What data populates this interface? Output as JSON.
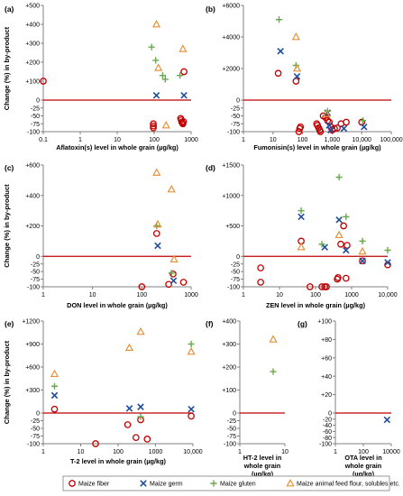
{
  "figure": {
    "ylabel": "Change (%) in by-product",
    "legend": [
      {
        "name": "Maize fiber",
        "marker": "circle",
        "color": "#c00000"
      },
      {
        "name": "Maize germ",
        "marker": "x",
        "color": "#1f4e9a"
      },
      {
        "name": "Maize gluten",
        "marker": "plus",
        "color": "#6aa84f"
      },
      {
        "name": "Maize animal feed flour, solubles etc.",
        "marker": "triangle",
        "color": "#e69138"
      }
    ],
    "colors": {
      "fiber": "#c00000",
      "germ": "#1f4e9a",
      "gluten": "#6aa84f",
      "feed": "#e69138",
      "zero_line": "#c00000",
      "axis": "#808080"
    }
  },
  "chart_data": [
    {
      "id": "a",
      "type": "scatter",
      "panel_label": "(a)",
      "xlabel": "Aflatoxin(s) level in whole grain (µg/kg)",
      "xscale": "log",
      "xlim": [
        0.1,
        1000
      ],
      "ylim": [
        -100,
        500
      ],
      "xticks": [
        0.1,
        1,
        10,
        100,
        1000
      ],
      "xtick_labels": [
        "0.1",
        "1",
        "10",
        "100",
        "1000"
      ],
      "yticks": [
        -100,
        -75,
        -50,
        -25,
        0,
        100,
        200,
        300,
        400,
        500
      ],
      "ytick_labels": [
        "-100",
        "-75",
        "-50",
        "-25",
        "0",
        "+100",
        "+200",
        "+300",
        "+400",
        "+500"
      ],
      "series": [
        {
          "name": "Maize fiber",
          "points": [
            [
              0.1,
              100
            ],
            [
              95,
              -75
            ],
            [
              95,
              -82
            ],
            [
              95,
              -88
            ],
            [
              520,
              -58
            ],
            [
              540,
              -63
            ],
            [
              560,
              -70
            ],
            [
              580,
              -73
            ],
            [
              600,
              -75
            ],
            [
              620,
              -68
            ],
            [
              640,
              150
            ]
          ]
        },
        {
          "name": "Maize germ",
          "points": [
            [
              115,
              25
            ],
            [
              640,
              25
            ]
          ]
        },
        {
          "name": "Maize gluten",
          "points": [
            [
              85,
              280
            ],
            [
              110,
              210
            ],
            [
              170,
              130
            ],
            [
              200,
              110
            ],
            [
              500,
              130
            ]
          ]
        },
        {
          "name": "Maize animal feed flour, solubles etc.",
          "points": [
            [
              115,
              400
            ],
            [
              130,
              170
            ],
            [
              210,
              -80
            ],
            [
              600,
              270
            ]
          ]
        }
      ]
    },
    {
      "id": "b",
      "type": "scatter",
      "panel_label": "(b)",
      "xlabel": "Fumonisin(s) level in whole grain (µg/kg)",
      "xscale": "log",
      "xlim": [
        1,
        100000
      ],
      "ylim": [
        -100,
        6000
      ],
      "xticks": [
        1,
        10,
        100,
        1000,
        10000,
        100000
      ],
      "xtick_labels": [
        "1",
        "10",
        "100",
        "1,000",
        "10,000",
        "100,000"
      ],
      "yticks": [
        -100,
        -75,
        -50,
        -25,
        0,
        2000,
        4000,
        6000
      ],
      "ytick_labels": [
        "-100",
        "-75",
        "-50",
        "-25",
        "0",
        "+2000",
        "+4000",
        "+6000"
      ],
      "series": [
        {
          "name": "Maize fiber",
          "points": [
            [
              15,
              1700
            ],
            [
              60,
              1200
            ],
            [
              75,
              -100
            ],
            [
              80,
              -90
            ],
            [
              85,
              -85
            ],
            [
              300,
              -75
            ],
            [
              320,
              -80
            ],
            [
              350,
              -88
            ],
            [
              380,
              -95
            ],
            [
              400,
              -100
            ],
            [
              500,
              -50
            ],
            [
              600,
              -55
            ],
            [
              700,
              -65
            ],
            [
              800,
              -70
            ],
            [
              900,
              -85
            ],
            [
              1000,
              -95
            ],
            [
              1200,
              -90
            ],
            [
              1500,
              -88
            ],
            [
              2000,
              -75
            ],
            [
              3000,
              -70
            ],
            [
              10000,
              -70
            ]
          ]
        },
        {
          "name": "Maize germ",
          "points": [
            [
              18,
              3100
            ],
            [
              65,
              1500
            ],
            [
              700,
              -40
            ],
            [
              800,
              -80
            ],
            [
              900,
              -95
            ],
            [
              2500,
              -90
            ],
            [
              12000,
              -85
            ]
          ]
        },
        {
          "name": "Maize gluten",
          "points": [
            [
              16,
              5100
            ],
            [
              60,
              2200
            ],
            [
              700,
              -35
            ],
            [
              11000,
              -65
            ]
          ]
        },
        {
          "name": "Maize animal feed flour, solubles etc.",
          "points": [
            [
              60,
              4000
            ],
            [
              65,
              2000
            ],
            [
              650,
              -45
            ]
          ]
        }
      ]
    },
    {
      "id": "c",
      "type": "scatter",
      "panel_label": "(c)",
      "xlabel": "DON level in whole grain (µg/kg)",
      "xscale": "log",
      "xlim": [
        1,
        1000
      ],
      "ylim": [
        -100,
        600
      ],
      "xticks": [
        1,
        10,
        100,
        1000
      ],
      "xtick_labels": [
        "1",
        "10",
        "100",
        "1000"
      ],
      "yticks": [
        -100,
        -75,
        -50,
        -25,
        0,
        200,
        400,
        600
      ],
      "ytick_labels": [
        "-100",
        "-75",
        "-50",
        "-25",
        "0",
        "+200",
        "+400",
        "+600"
      ],
      "series": [
        {
          "name": "Maize fiber",
          "points": [
            [
              100,
              -100
            ],
            [
              200,
              150
            ],
            [
              350,
              -92
            ],
            [
              430,
              -58
            ],
            [
              700,
              -85
            ]
          ]
        },
        {
          "name": "Maize germ",
          "points": [
            [
              210,
              70
            ],
            [
              440,
              -80
            ]
          ]
        },
        {
          "name": "Maize gluten",
          "points": [
            [
              200,
              200
            ],
            [
              400,
              -55
            ]
          ]
        },
        {
          "name": "Maize animal feed flour, solubles etc.",
          "points": [
            [
              200,
              550
            ],
            [
              210,
              210
            ],
            [
              400,
              440
            ],
            [
              450,
              -10
            ]
          ]
        }
      ]
    },
    {
      "id": "d",
      "type": "scatter",
      "panel_label": "(d)",
      "xlabel": "ZEN level in whole grain (µg/kg)",
      "xscale": "log",
      "xlim": [
        1,
        10000
      ],
      "ylim": [
        -100,
        1500
      ],
      "xticks": [
        1,
        10,
        100,
        1000,
        10000
      ],
      "xtick_labels": [
        "1",
        "10",
        "100",
        "1000",
        "10,000"
      ],
      "yticks": [
        -100,
        -75,
        -50,
        -25,
        0,
        500,
        1000,
        1500
      ],
      "ytick_labels": [
        "-100",
        "-75",
        "-50",
        "-25",
        "0",
        "+500",
        "+1000",
        "+1500"
      ],
      "series": [
        {
          "name": "Maize fiber",
          "points": [
            [
              3,
              -38
            ],
            [
              3,
              -85
            ],
            [
              40,
              250
            ],
            [
              70,
              -100
            ],
            [
              150,
              -100
            ],
            [
              180,
              -100
            ],
            [
              200,
              -100
            ],
            [
              400,
              -75
            ],
            [
              420,
              -70
            ],
            [
              500,
              200
            ],
            [
              600,
              500
            ],
            [
              700,
              -72
            ],
            [
              750,
              180
            ],
            [
              2000,
              -15
            ],
            [
              10000,
              -28
            ]
          ]
        },
        {
          "name": "Maize germ",
          "points": [
            [
              40,
              650
            ],
            [
              180,
              150
            ],
            [
              450,
              600
            ],
            [
              700,
              100
            ],
            [
              2000,
              -15
            ],
            [
              10000,
              -20
            ]
          ]
        },
        {
          "name": "Maize gluten",
          "points": [
            [
              40,
              750
            ],
            [
              150,
              200
            ],
            [
              450,
              1300
            ],
            [
              700,
              650
            ],
            [
              2000,
              250
            ],
            [
              10000,
              100
            ]
          ]
        },
        {
          "name": "Maize animal feed flour, solubles etc.",
          "points": [
            [
              40,
              150
            ],
            [
              450,
              350
            ],
            [
              2000,
              80
            ]
          ]
        }
      ]
    },
    {
      "id": "e",
      "type": "scatter",
      "panel_label": "(e)",
      "xlabel": "T-2 level in whole grain (µg/kg)",
      "xscale": "log",
      "xlim": [
        1,
        10000
      ],
      "ylim": [
        -100,
        1200
      ],
      "xticks": [
        1,
        10,
        100,
        1000,
        10000
      ],
      "xtick_labels": [
        "1",
        "10",
        "100",
        "1000",
        "10,000"
      ],
      "yticks": [
        -100,
        -75,
        -50,
        -25,
        0,
        300,
        600,
        900,
        1200
      ],
      "ytick_labels": [
        "-100",
        "-75",
        "-50",
        "-25",
        "0",
        "+300",
        "+600",
        "+900",
        "+1200"
      ],
      "series": [
        {
          "name": "Maize fiber",
          "points": [
            [
              2,
              50
            ],
            [
              25,
              -100
            ],
            [
              180,
              -38
            ],
            [
              300,
              -80
            ],
            [
              400,
              -22
            ],
            [
              600,
              -85
            ],
            [
              9000,
              -10
            ]
          ]
        },
        {
          "name": "Maize germ",
          "points": [
            [
              2,
              230
            ],
            [
              200,
              60
            ],
            [
              400,
              80
            ],
            [
              9000,
              50
            ]
          ]
        },
        {
          "name": "Maize gluten",
          "points": [
            [
              2,
              350
            ],
            [
              400,
              -12
            ],
            [
              9000,
              900
            ]
          ]
        },
        {
          "name": "Maize animal feed flour, solubles etc.",
          "points": [
            [
              2,
              510
            ],
            [
              200,
              850
            ],
            [
              400,
              1060
            ],
            [
              9000,
              800
            ]
          ]
        }
      ]
    },
    {
      "id": "f",
      "type": "scatter",
      "panel_label": "(f)",
      "xlabel": "HT-2 level in whole grain (µg/kg)",
      "xscale": "log",
      "xlim": [
        1,
        10
      ],
      "ylim": [
        -100,
        400
      ],
      "xticks": [
        1,
        10
      ],
      "xtick_labels": [
        "1",
        "10"
      ],
      "yticks": [
        -100,
        -75,
        -50,
        -25,
        0,
        100,
        200,
        300,
        400
      ],
      "ytick_labels": [
        "-100",
        "-75",
        "-50",
        "-25",
        "0",
        "+100",
        "+200",
        "+300",
        "+400"
      ],
      "series": [
        {
          "name": "Maize gluten",
          "points": [
            [
              5.5,
              180
            ]
          ]
        },
        {
          "name": "Maize animal feed flour, solubles etc.",
          "points": [
            [
              5.5,
              320
            ]
          ]
        }
      ]
    },
    {
      "id": "g",
      "type": "scatter",
      "panel_label": "(g)",
      "xlabel": "OTA level in whole grain (µg/kg)",
      "xscale": "log",
      "xlim": [
        1,
        10000
      ],
      "ylim": [
        -100,
        100
      ],
      "xticks": [
        1,
        100,
        10000
      ],
      "xtick_labels": [
        "1",
        "100",
        "10000"
      ],
      "yticks": [
        -100,
        -80,
        -60,
        -40,
        -20,
        0,
        20,
        40,
        60,
        80,
        100
      ],
      "ytick_labels": [
        "-100",
        "-80",
        "-60",
        "-40",
        "-20",
        "0",
        "+20",
        "+40",
        "+60",
        "+80",
        "+100"
      ],
      "series": [
        {
          "name": "Maize germ",
          "points": [
            [
              5000,
              -22
            ]
          ]
        }
      ]
    }
  ]
}
